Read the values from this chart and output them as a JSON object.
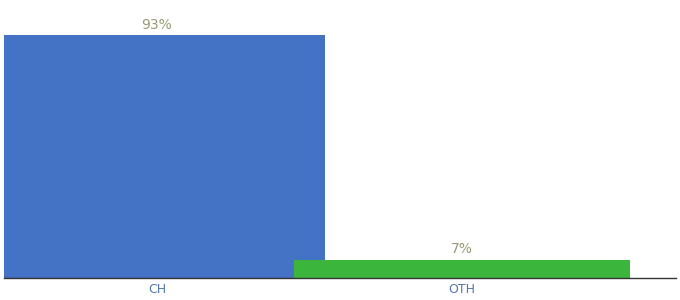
{
  "categories": [
    "CH",
    "OTH"
  ],
  "values": [
    93,
    7
  ],
  "bar_colors": [
    "#4472c4",
    "#3cb53c"
  ],
  "bar_labels": [
    "93%",
    "7%"
  ],
  "background_color": "#ffffff",
  "label_color": "#999977",
  "label_fontsize": 10,
  "tick_fontsize": 9,
  "tick_color": "#5577aa",
  "ylim": [
    0,
    105
  ],
  "bar_width": 0.55,
  "x_positions": [
    0.25,
    0.75
  ],
  "xlim": [
    0.0,
    1.1
  ]
}
